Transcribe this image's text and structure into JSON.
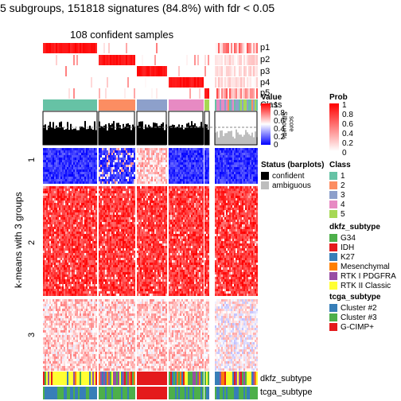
{
  "title": "5 subgroups, 151818 signatures (84.8%) with fdr < 0.05",
  "subtitle": "108 confident samples",
  "row_axis_label": "k-means with 3 groups",
  "row_groups": [
    "1",
    "2",
    "3"
  ],
  "track_labels": {
    "p1": "p1",
    "p2": "p2",
    "p3": "p3",
    "p4": "p4",
    "p5": "p5",
    "class": "Class",
    "silhouette_a": "Silhouette",
    "silhouette_b": "score",
    "dkfz": "dkfz_subtype",
    "tcga": "tcga_subtype"
  },
  "legends": {
    "value": {
      "title": "Value",
      "ticks": [
        "1",
        "0.8",
        "0.6",
        "0.4",
        "0.2",
        "0"
      ]
    },
    "prob": {
      "title": "Prob",
      "ticks": [
        "1",
        "0.8",
        "0.6",
        "0.4",
        "0.2",
        "0"
      ]
    },
    "status": {
      "title": "Status (barplots)",
      "items": [
        {
          "label": "confident",
          "color": "#000000"
        },
        {
          "label": "ambiguous",
          "color": "#bebebe"
        }
      ]
    },
    "class": {
      "title": "Class",
      "items": [
        {
          "label": "1",
          "color": "#66c2a5"
        },
        {
          "label": "2",
          "color": "#fc8d62"
        },
        {
          "label": "3",
          "color": "#8da0cb"
        },
        {
          "label": "4",
          "color": "#e78ac3"
        },
        {
          "label": "5",
          "color": "#a6d854"
        }
      ]
    },
    "dkfz": {
      "title": "dkfz_subtype",
      "items": [
        {
          "label": "G34",
          "color": "#4daf4a"
        },
        {
          "label": "IDH",
          "color": "#e41a1c"
        },
        {
          "label": "K27",
          "color": "#377eb8"
        },
        {
          "label": "Mesenchymal",
          "color": "#ff7f00"
        },
        {
          "label": "RTK I PDGFRA",
          "color": "#984ea3"
        },
        {
          "label": "RTK II Classic",
          "color": "#ffff33"
        }
      ]
    },
    "tcga": {
      "title": "tcga_subtype",
      "items": [
        {
          "label": "Cluster #2",
          "color": "#377eb8"
        },
        {
          "label": "Cluster #3",
          "color": "#4daf4a"
        },
        {
          "label": "G-CIMP+",
          "color": "#e41a1c"
        }
      ]
    }
  },
  "colors": {
    "high": "#ff0000",
    "mid": "#ffffff",
    "low": "#0000ff"
  }
}
